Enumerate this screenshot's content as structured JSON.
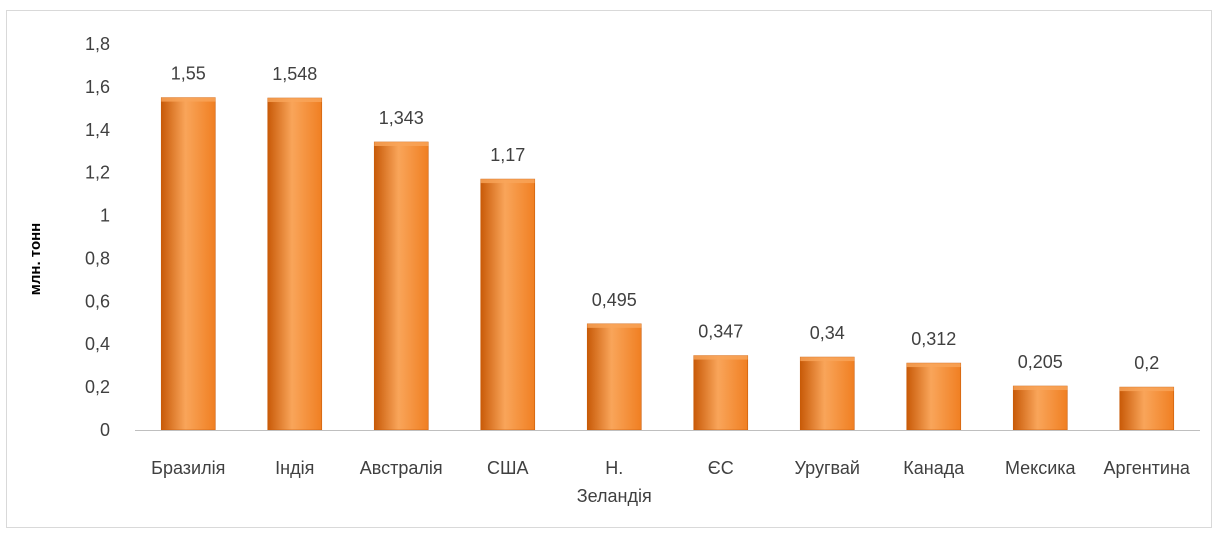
{
  "chart_data": {
    "type": "bar",
    "categories": [
      [
        "Бразилія"
      ],
      [
        "Індія"
      ],
      [
        "Австралія"
      ],
      [
        "США"
      ],
      [
        "Н.",
        "Зеландія"
      ],
      [
        "ЄС"
      ],
      [
        "Уругвай"
      ],
      [
        "Канада"
      ],
      [
        "Мексика"
      ],
      [
        "Аргентина"
      ]
    ],
    "values": [
      1.55,
      1.548,
      1.343,
      1.17,
      0.495,
      0.347,
      0.34,
      0.312,
      0.205,
      0.2
    ],
    "data_labels": [
      "1,55",
      "1,548",
      "1,343",
      "1,17",
      "0,495",
      "0,347",
      "0,34",
      "0,312",
      "0,205",
      "0,2"
    ],
    "yticks": [
      0,
      0.2,
      0.4,
      0.6,
      0.8,
      1,
      1.2,
      1.4,
      1.6,
      1.8
    ],
    "ytick_labels": [
      "0",
      "0,2",
      "0,4",
      "0,6",
      "0,8",
      "1",
      "1,2",
      "1,4",
      "1,6",
      "1,8"
    ],
    "ylim": [
      0,
      1.8
    ],
    "ylabel": "млн. тонн",
    "xlabel": "",
    "title": "",
    "grid": false,
    "legend": "none",
    "bar_color": "#F07F22",
    "bar_color_light": "#F9A55A",
    "bar_color_dark": "#C85A08"
  }
}
